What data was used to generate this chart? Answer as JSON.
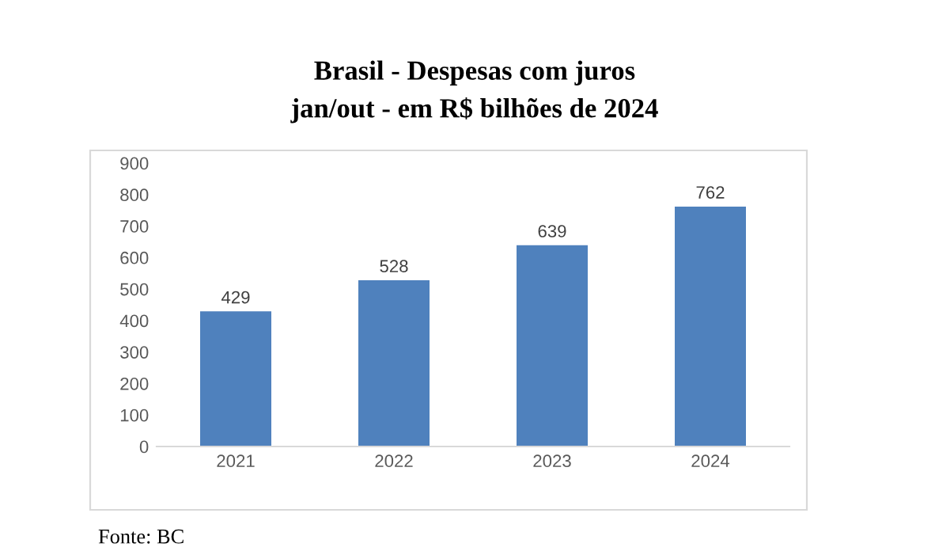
{
  "chart_data": {
    "type": "bar",
    "title": "Brasil - Despesas com juros\njan/out - em R$ bilhões de 2024",
    "categories": [
      "2021",
      "2022",
      "2023",
      "2024"
    ],
    "values": [
      429,
      528,
      639,
      762
    ],
    "color": "#4f81bd",
    "ylim": [
      0,
      900
    ],
    "yticks": [
      0,
      100,
      200,
      300,
      400,
      500,
      600,
      700,
      800,
      900
    ],
    "grid": false,
    "data_labels": true,
    "annotations": [
      "Fonte: BC"
    ]
  }
}
